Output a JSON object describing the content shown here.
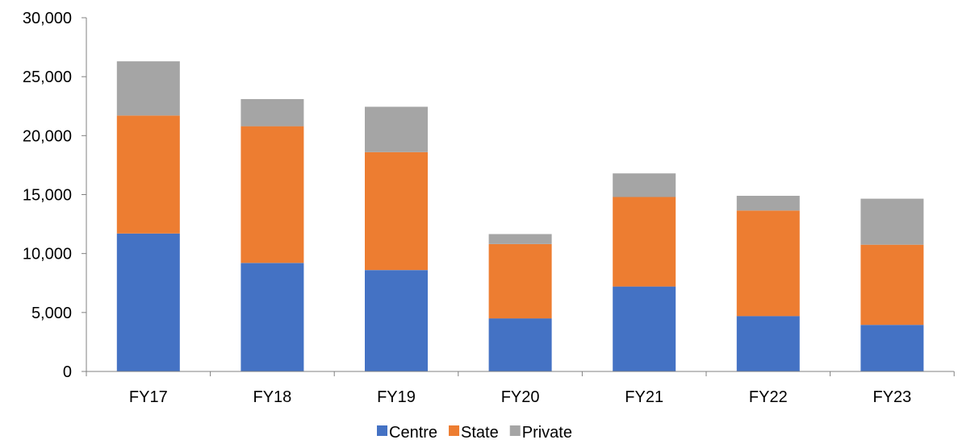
{
  "chart_data": {
    "type": "bar",
    "stacked": true,
    "categories": [
      "FY17",
      "FY18",
      "FY19",
      "FY20",
      "FY21",
      "FY22",
      "FY23"
    ],
    "series": [
      {
        "name": "Centre",
        "color": "#4472C4",
        "values": [
          11700,
          9200,
          8600,
          4500,
          7200,
          4700,
          3950
        ]
      },
      {
        "name": "State",
        "color": "#ED7D31",
        "values": [
          10000,
          11600,
          10000,
          6300,
          7600,
          8950,
          6800
        ]
      },
      {
        "name": "Private",
        "color": "#A5A5A5",
        "values": [
          4600,
          2300,
          3850,
          850,
          2000,
          1250,
          3900
        ]
      }
    ],
    "y_ticks": [
      "0",
      "5,000",
      "10,000",
      "15,000",
      "20,000",
      "25,000",
      "30,000"
    ],
    "ylim": [
      0,
      30000
    ],
    "grid": false,
    "legend_position": "bottom",
    "title": "",
    "xlabel": "",
    "ylabel": ""
  }
}
